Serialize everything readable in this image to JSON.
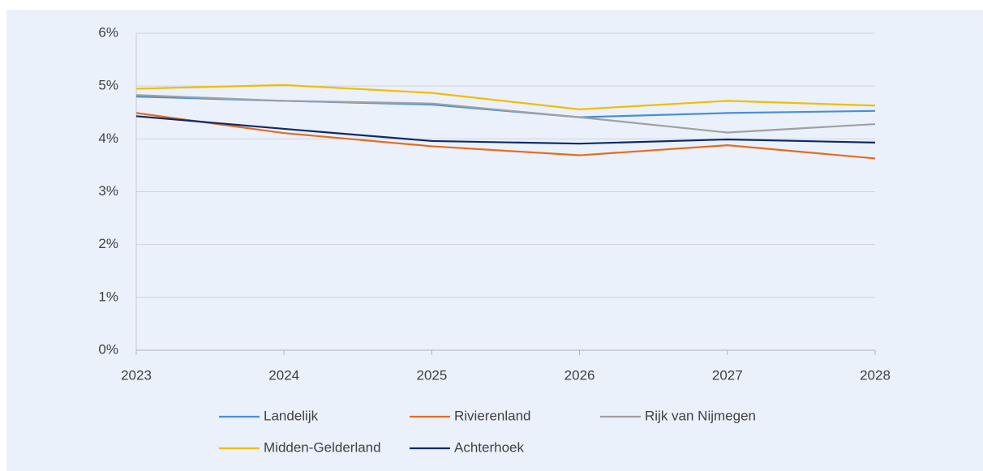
{
  "chart_data": {
    "type": "line",
    "categories": [
      "2023",
      "2024",
      "2025",
      "2026",
      "2027",
      "2028"
    ],
    "series": [
      {
        "name": "Landelijk",
        "color": "#4a8fd4",
        "values": [
          4.8,
          4.72,
          4.65,
          4.41,
          4.49,
          4.53
        ]
      },
      {
        "name": "Rivierenland",
        "color": "#e46c1f",
        "values": [
          4.49,
          4.11,
          3.86,
          3.69,
          3.88,
          3.63
        ]
      },
      {
        "name": "Rijk van Nijmegen",
        "color": "#a0a0a0",
        "values": [
          4.83,
          4.72,
          4.67,
          4.41,
          4.12,
          4.28
        ]
      },
      {
        "name": "Midden-Gelderland",
        "color": "#f2bd00",
        "values": [
          4.95,
          5.02,
          4.87,
          4.56,
          4.72,
          4.63
        ]
      },
      {
        "name": "Achterhoek",
        "color": "#0e2a66",
        "values": [
          4.43,
          4.19,
          3.96,
          3.91,
          3.99,
          3.93
        ]
      }
    ],
    "ylim": [
      0,
      6
    ],
    "yticks": [
      {
        "value": 0,
        "label": "0%"
      },
      {
        "value": 1,
        "label": "1%"
      },
      {
        "value": 2,
        "label": "2%"
      },
      {
        "value": 3,
        "label": "3%"
      },
      {
        "value": 4,
        "label": "4%"
      },
      {
        "value": 5,
        "label": "5%"
      },
      {
        "value": 6,
        "label": "6%"
      }
    ],
    "grid": true,
    "legend": "bottom"
  }
}
